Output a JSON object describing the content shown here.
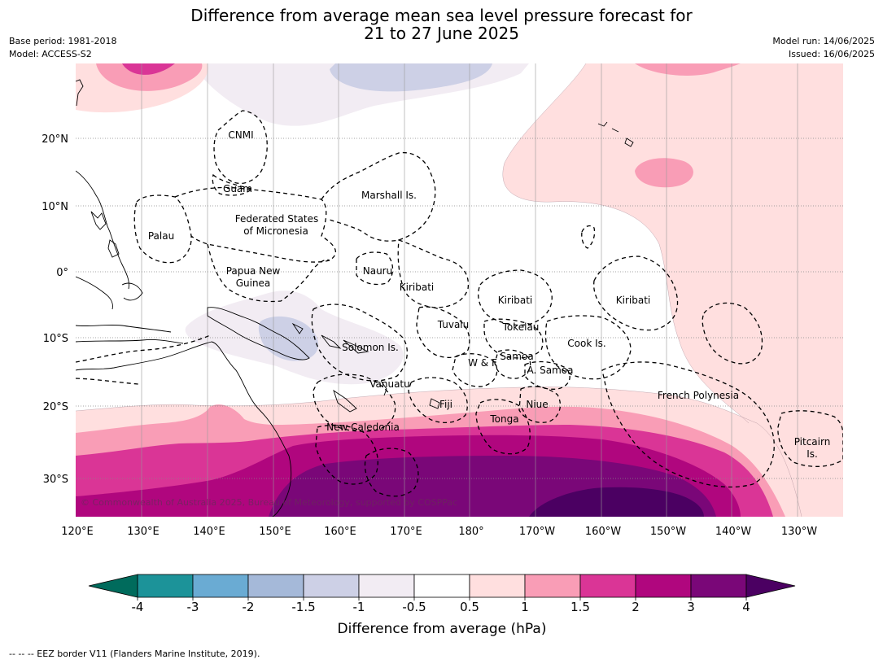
{
  "title_line1": "Difference from average mean sea level pressure forecast for",
  "title_line2": "21 to 27 June 2025",
  "base_period": "Base period: 1981-2018",
  "model": "Model: ACCESS-S2",
  "model_run": "Model run: 14/06/2025",
  "issued": "Issued: 16/06/2025",
  "copyright": "© Commonwealth of Australia 2025, Bureau of Meteorology, supported by COSPPac",
  "footer": "--  --  -- EEZ border V11 (Flanders Marine Institute, 2019).",
  "lat_labels": [
    "20°N",
    "10°N",
    "0°",
    "10°S",
    "20°S",
    "30°S"
  ],
  "lon_labels": [
    "120°E",
    "130°E",
    "140°E",
    "150°E",
    "160°E",
    "170°E",
    "180°",
    "170°W",
    "160°W",
    "150°W",
    "140°W",
    "130°W"
  ],
  "place_names": {
    "cnmi": "CNMI",
    "guam": "Guam",
    "marshall": "Marshall Is.",
    "fsm1": "Federated States",
    "fsm2": "of Micronesia",
    "palau": "Palau",
    "png1": "Papua New",
    "png2": "Guinea",
    "nauru": "Nauru",
    "kiribati_w": "Kiribati",
    "kiribati_c": "Kiribati",
    "kiribati_e": "Kiribati",
    "tuvalu": "Tuvalu",
    "tokelau": "Tokelau",
    "cook": "Cook Is.",
    "solomon": "Solomon Is.",
    "samoa": "Samoa",
    "wf": "W & F",
    "asamoa": "A. Samoa",
    "vanuatu": "Vanuatu",
    "fiji": "Fiji",
    "niue": "Niue",
    "frenchpoly": "French Polynesia",
    "tonga": "Tonga",
    "newcal": "New Caledonia",
    "pitcairn1": "Pitcairn",
    "pitcairn2": "Is."
  },
  "colorbar": {
    "title": "Difference from average (hPa)",
    "ticks": [
      "-4",
      "-3",
      "-2",
      "-1.5",
      "-1",
      "-0.5",
      "0.5",
      "1",
      "1.5",
      "2",
      "3",
      "4"
    ],
    "under_color": "#006b5c",
    "over_color": "#4b0062",
    "colors": [
      "#1c9399",
      "#6aabd3",
      "#a5b9d9",
      "#cdd0e6",
      "#f2ecf3",
      "#ffffff",
      "#ffdfdf",
      "#f99db6",
      "#da3596",
      "#b0067e",
      "#7a0778"
    ]
  }
}
